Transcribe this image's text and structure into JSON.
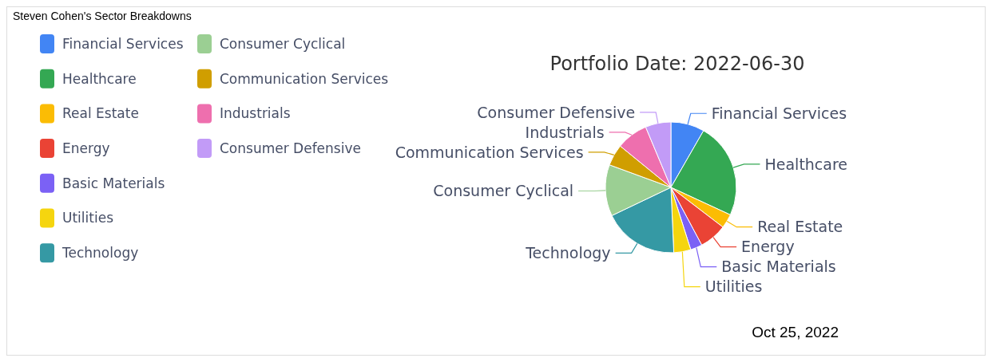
{
  "chart_data": {
    "type": "pie",
    "title": "Steven Cohen's Sector Breakdowns",
    "subtitle": "Portfolio Date: 2022-06-30",
    "categories": [
      "Financial Services",
      "Healthcare",
      "Real Estate",
      "Energy",
      "Basic Materials",
      "Utilities",
      "Technology",
      "Consumer Cyclical",
      "Communication Services",
      "Industrials",
      "Consumer Defensive"
    ],
    "values": [
      8.3,
      23.6,
      3.5,
      6.8,
      2.9,
      4.2,
      18.6,
      12.7,
      5.3,
      7.8,
      6.3
    ],
    "colors": [
      "#4285f4",
      "#34a853",
      "#fbbc04",
      "#ea4335",
      "#7b61f5",
      "#f5d50f",
      "#3599a4",
      "#9bcf93",
      "#d09e00",
      "#ee6fae",
      "#c29bf7"
    ],
    "legend": "top left",
    "annotations": [
      "Oct 25, 2022"
    ]
  }
}
